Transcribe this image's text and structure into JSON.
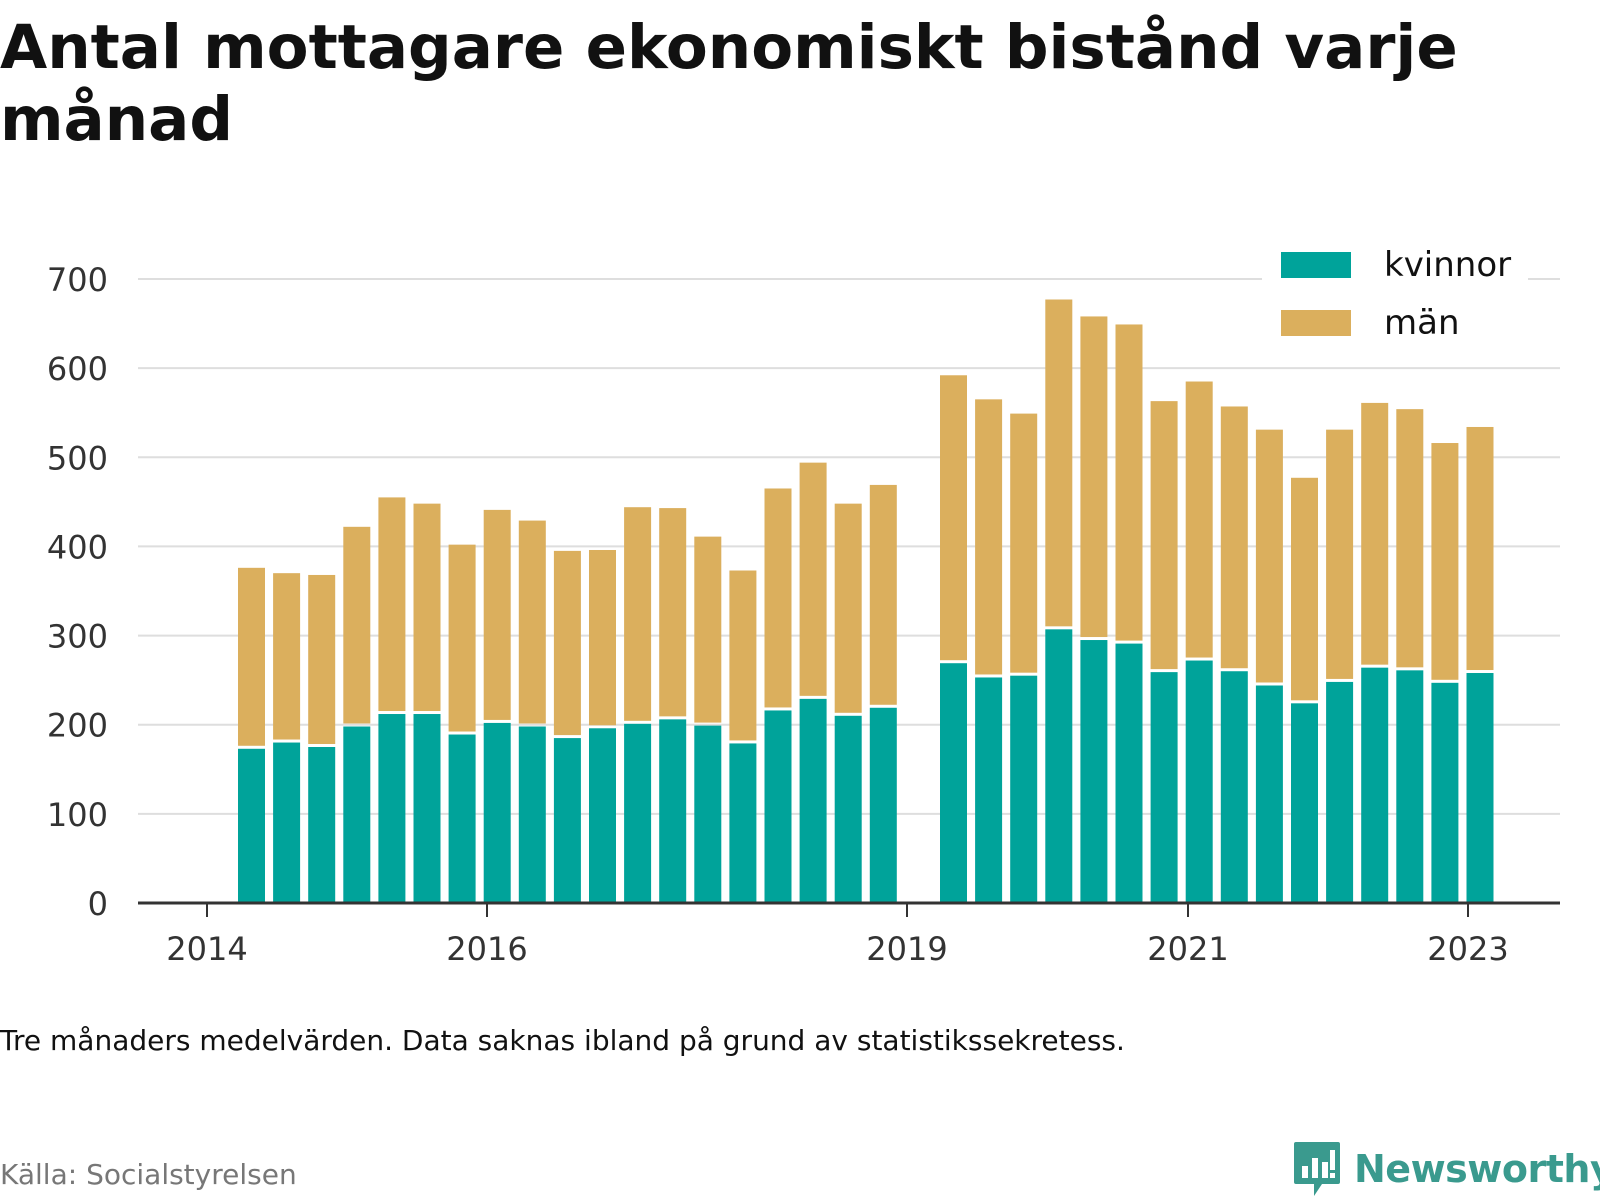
{
  "title": "Antal mottagare ekonomiskt bistånd varje månad",
  "note": "Tre månaders medelvärden. Data saknas ibland på grund av statistikssekretess.",
  "source": "Källa: Socialstyrelsen",
  "brand": "Newsworthy",
  "colors": {
    "kvinnor": "#00a39a",
    "man": "#dbaf5d",
    "grid": "#dedede",
    "axis": "#333333"
  },
  "chart_data": {
    "type": "bar",
    "stacked": true,
    "ylim": [
      0,
      700
    ],
    "yticks": [
      0,
      100,
      200,
      300,
      400,
      500,
      600,
      700
    ],
    "xticks": [
      "2014",
      "2016",
      "2019",
      "2021",
      "2023"
    ],
    "legend": {
      "position": "top-right",
      "entries": [
        "kvinnor",
        "män"
      ]
    },
    "grid": true,
    "bars": [
      {
        "period": 1,
        "kvinnor": 173,
        "total": 376
      },
      {
        "period": 2,
        "kvinnor": 180,
        "total": 370
      },
      {
        "period": 3,
        "kvinnor": 175,
        "total": 368
      },
      {
        "period": 4,
        "kvinnor": 198,
        "total": 422
      },
      {
        "period": 5,
        "kvinnor": 212,
        "total": 455
      },
      {
        "period": 6,
        "kvinnor": 212,
        "total": 448
      },
      {
        "period": 7,
        "kvinnor": 189,
        "total": 402
      },
      {
        "period": 8,
        "kvinnor": 202,
        "total": 441
      },
      {
        "period": 9,
        "kvinnor": 198,
        "total": 429
      },
      {
        "period": 10,
        "kvinnor": 185,
        "total": 395
      },
      {
        "period": 11,
        "kvinnor": 196,
        "total": 396
      },
      {
        "period": 12,
        "kvinnor": 201,
        "total": 444
      },
      {
        "period": 13,
        "kvinnor": 206,
        "total": 443
      },
      {
        "period": 14,
        "kvinnor": 199,
        "total": 411
      },
      {
        "period": 15,
        "kvinnor": 179,
        "total": 373
      },
      {
        "period": 16,
        "kvinnor": 216,
        "total": 465
      },
      {
        "period": 17,
        "kvinnor": 229,
        "total": 494
      },
      {
        "period": 18,
        "kvinnor": 210,
        "total": 448
      },
      {
        "period": 19,
        "kvinnor": 219,
        "total": 469
      },
      {
        "period": 21,
        "kvinnor": 269,
        "total": 592
      },
      {
        "period": 22,
        "kvinnor": 253,
        "total": 565
      },
      {
        "period": 23,
        "kvinnor": 255,
        "total": 549
      },
      {
        "period": 24,
        "kvinnor": 307,
        "total": 677
      },
      {
        "period": 25,
        "kvinnor": 295,
        "total": 658
      },
      {
        "period": 26,
        "kvinnor": 291,
        "total": 649
      },
      {
        "period": 27,
        "kvinnor": 259,
        "total": 563
      },
      {
        "period": 28,
        "kvinnor": 272,
        "total": 585
      },
      {
        "period": 29,
        "kvinnor": 260,
        "total": 557
      },
      {
        "period": 30,
        "kvinnor": 244,
        "total": 531
      },
      {
        "period": 31,
        "kvinnor": 224,
        "total": 477
      },
      {
        "period": 32,
        "kvinnor": 248,
        "total": 531
      },
      {
        "period": 33,
        "kvinnor": 264,
        "total": 561
      },
      {
        "period": 34,
        "kvinnor": 261,
        "total": 554
      },
      {
        "period": 35,
        "kvinnor": 247,
        "total": 516
      },
      {
        "period": 36,
        "kvinnor": 258,
        "total": 534
      }
    ]
  }
}
